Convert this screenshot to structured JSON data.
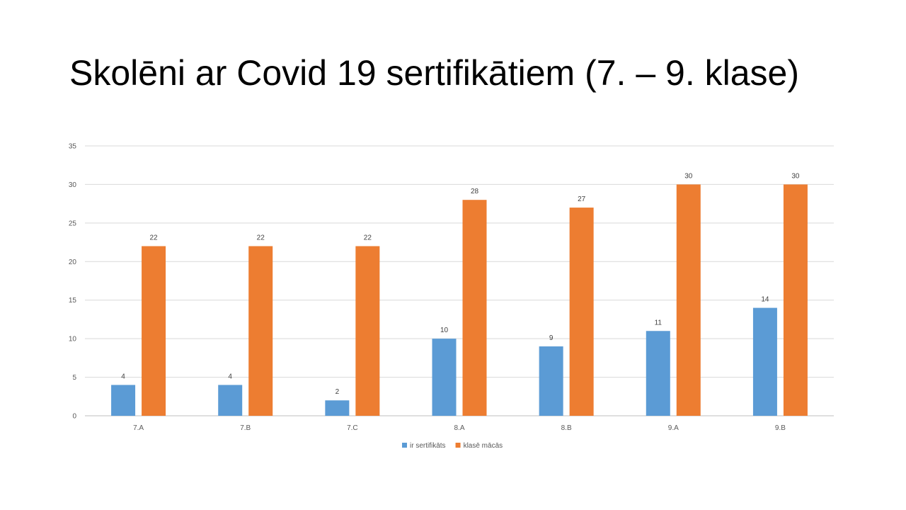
{
  "slide": {
    "title": "Skolēni ar Covid 19 sertifikātiem (7. – 9. klase)"
  },
  "chart_data": {
    "type": "bar",
    "title": "",
    "xlabel": "",
    "ylabel": "",
    "categories": [
      "7.A",
      "7.B",
      "7.C",
      "8.A",
      "8.B",
      "9.A",
      "9.B"
    ],
    "series": [
      {
        "name": "ir sertifikāts",
        "values": [
          4,
          4,
          2,
          10,
          9,
          11,
          14
        ],
        "color": "#5B9BD5"
      },
      {
        "name": "klasē mācās",
        "values": [
          22,
          22,
          22,
          28,
          27,
          30,
          30
        ],
        "color": "#ED7D31"
      }
    ],
    "ylim": [
      0,
      35
    ],
    "yticks": [
      0,
      5,
      10,
      15,
      20,
      25,
      30,
      35
    ],
    "grid": true,
    "data_labels": true,
    "legend_position": "bottom"
  }
}
